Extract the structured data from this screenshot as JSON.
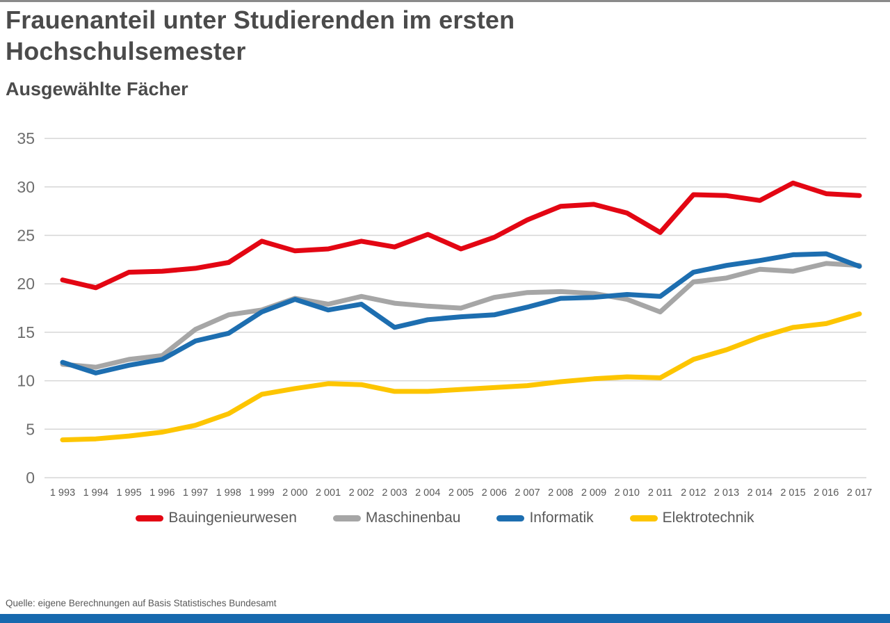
{
  "header": {
    "title": "Frauenanteil unter Studierenden im ersten Hochschulsemester",
    "subtitle": "Ausgewählte Fächer"
  },
  "source": "Quelle: eigene Berechnungen auf Basis Statistisches Bundesamt",
  "colors": {
    "accent_bar": "#1769ae",
    "top_rule": "#8a8a8a",
    "grid": "#d6d6d6",
    "axis_text": "#6e6e6e",
    "title_text": "#4b4b4b"
  },
  "chart_data": {
    "type": "line",
    "title": "Frauenanteil unter Studierenden im ersten Hochschulsemester",
    "subtitle": "Ausgewählte Fächer",
    "x": [
      1993,
      1994,
      1995,
      1996,
      1997,
      1998,
      1999,
      2000,
      2001,
      2002,
      2003,
      2004,
      2005,
      2006,
      2007,
      2008,
      2009,
      2010,
      2011,
      2012,
      2013,
      2014,
      2015,
      2016,
      2017
    ],
    "x_tick_labels": [
      "1 993",
      "1 994",
      "1 995",
      "1 996",
      "1 997",
      "1 998",
      "1 999",
      "2 000",
      "2 001",
      "2 002",
      "2 003",
      "2 004",
      "2 005",
      "2 006",
      "2 007",
      "2 008",
      "2 009",
      "2 010",
      "2 011",
      "2 012",
      "2 013",
      "2 014",
      "2 015",
      "2 016",
      "2 017"
    ],
    "y_tick_labels": [
      "0",
      "5",
      "10",
      "15",
      "20",
      "25",
      "30",
      "35"
    ],
    "ylim": [
      0,
      35
    ],
    "ytick_step": 5,
    "grid": true,
    "legend_position": "bottom",
    "series": [
      {
        "name": "Bauingenieurwesen",
        "color": "#e30613",
        "values": [
          20.4,
          19.6,
          21.2,
          21.3,
          21.6,
          22.2,
          24.4,
          23.4,
          23.6,
          24.4,
          23.8,
          25.1,
          23.6,
          24.8,
          26.6,
          28.0,
          28.2,
          27.3,
          25.3,
          29.2,
          29.1,
          28.6,
          30.4,
          29.3,
          29.1
        ]
      },
      {
        "name": "Maschinenbau",
        "color": "#a6a6a6",
        "values": [
          11.7,
          11.4,
          12.2,
          12.6,
          15.3,
          16.8,
          17.3,
          18.5,
          17.9,
          18.7,
          18.0,
          17.7,
          17.5,
          18.6,
          19.1,
          19.2,
          19.0,
          18.4,
          17.1,
          20.2,
          20.6,
          21.5,
          21.3,
          22.1,
          21.9
        ]
      },
      {
        "name": "Informatik",
        "color": "#1d6eb0",
        "values": [
          11.9,
          10.8,
          11.6,
          12.2,
          14.1,
          14.9,
          17.1,
          18.4,
          17.3,
          17.9,
          15.5,
          16.3,
          16.6,
          16.8,
          17.6,
          18.5,
          18.6,
          18.9,
          18.7,
          21.2,
          21.9,
          22.4,
          23.0,
          23.1,
          21.8
        ]
      },
      {
        "name": "Elektrotechnik",
        "color": "#fdc500",
        "values": [
          3.9,
          4.0,
          4.3,
          4.7,
          5.4,
          6.6,
          8.6,
          9.2,
          9.7,
          9.6,
          8.9,
          8.9,
          9.1,
          9.3,
          9.5,
          9.9,
          10.2,
          10.4,
          10.3,
          12.2,
          13.2,
          14.5,
          15.5,
          15.9,
          16.9
        ]
      }
    ]
  }
}
